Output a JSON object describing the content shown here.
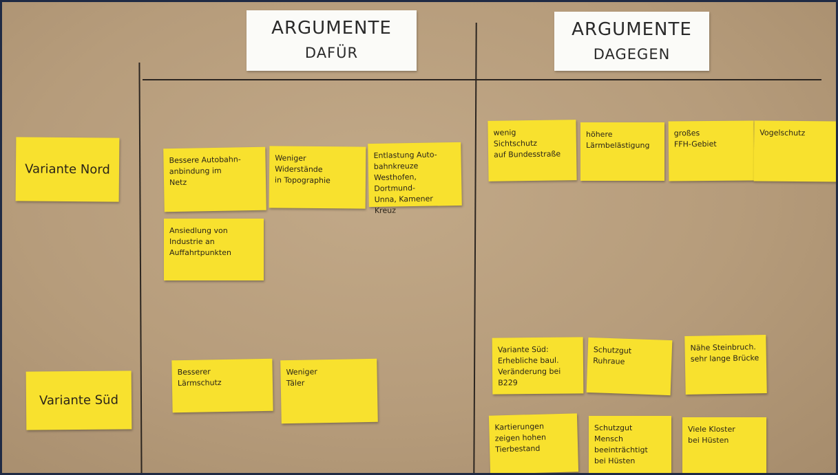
{
  "columns": [
    {
      "title": "ARGUMENTE",
      "subtitle": "DAFÜR"
    },
    {
      "title": "ARGUMENTE",
      "subtitle": "DAGEGEN"
    }
  ],
  "rows": [
    {
      "label": "Variante Nord"
    },
    {
      "label": "Variante Süd"
    }
  ],
  "notes": [
    {
      "lines": [
        "Bessere Autobahn-",
        "anbindung im",
        "Netz"
      ]
    },
    {
      "lines": [
        "Weniger",
        "Widerstände",
        "in Topographie"
      ]
    },
    {
      "lines": [
        "Entlastung Auto-",
        "bahnkreuze",
        "Westhofen, Dortmund-",
        "Unna, Kamener Kreuz"
      ]
    },
    {
      "lines": [
        "Ansiedlung von",
        "Industrie an",
        "Auffahrtpunkten"
      ]
    },
    {
      "lines": [
        "wenig",
        "Sichtschutz",
        "auf Bundesstraße"
      ]
    },
    {
      "lines": [
        "höhere",
        "Lärmbelästigung"
      ]
    },
    {
      "lines": [
        "großes",
        "FFH-Gebiet"
      ]
    },
    {
      "lines": [
        "Vogelschutz"
      ]
    },
    {
      "lines": [
        "Besserer",
        "Lärmschutz"
      ]
    },
    {
      "lines": [
        "Weniger",
        "Täler"
      ]
    },
    {
      "lines": [
        "Variante Süd:",
        "Erhebliche baul.",
        "Veränderung bei",
        "B229"
      ]
    },
    {
      "lines": [
        "Schutzgut",
        "Ruhraue"
      ]
    },
    {
      "lines": [
        "Nähe Steinbruch.",
        "sehr lange Brücke"
      ]
    },
    {
      "lines": [
        "Kartierungen",
        "zeigen hohen",
        "Tierbestand"
      ]
    },
    {
      "lines": [
        "Schutzgut",
        "Mensch beeinträchtigt",
        "bei Hüsten"
      ]
    },
    {
      "lines": [
        "Viele Kloster",
        "bei Hüsten"
      ]
    }
  ]
}
